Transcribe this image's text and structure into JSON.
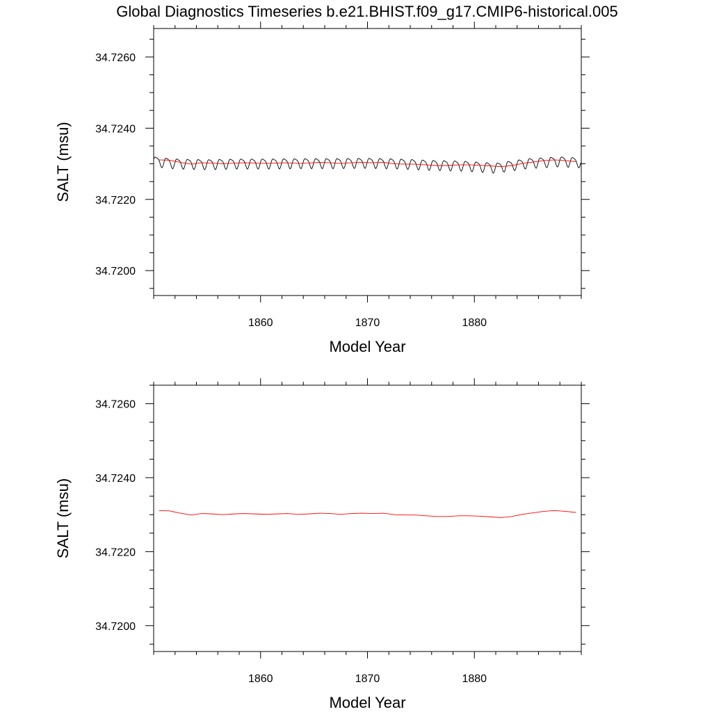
{
  "title": "Global Diagnostics Timeseries b.e21.BHIST.f09_g17.CMIP6-historical.005",
  "colors": {
    "raw": "#000000",
    "smooth": "#ff0000"
  },
  "chart_data": [
    {
      "type": "line",
      "xlabel": "Model Year",
      "ylabel": "SALT (msu)",
      "xlim": [
        1850,
        1890
      ],
      "ylim": [
        34.7193,
        34.7268
      ],
      "x_ticks": [
        1860,
        1870,
        1880
      ],
      "x_tick_labels": [
        "1860",
        "1870",
        "1880"
      ],
      "y_ticks": [
        34.72,
        34.722,
        34.724,
        34.726
      ],
      "y_tick_labels": [
        "34.7200",
        "34.7220",
        "34.7240",
        "34.7260"
      ],
      "series": [
        {
          "style": "monthly",
          "color": "#000000",
          "x_start": 1850.04,
          "x_step": 0.0833333,
          "base_x": [
            1850,
            1852,
            1855,
            1858,
            1861,
            1864,
            1867,
            1870,
            1873,
            1876,
            1879,
            1882,
            1885,
            1888,
            1890
          ],
          "base_y": [
            34.72308,
            34.72302,
            34.723,
            34.72302,
            34.72302,
            34.72303,
            34.72303,
            34.72304,
            34.72302,
            34.72298,
            34.72296,
            34.7229,
            34.72303,
            34.72308,
            34.72305
          ],
          "seasonal_amplitude": 0.00015
        },
        {
          "style": "annual",
          "color": "#ff0000",
          "x": [
            1850.5,
            1851.5,
            1852.5,
            1853.5,
            1854.5,
            1855.5,
            1856.5,
            1857.5,
            1858.5,
            1859.5,
            1860.5,
            1861.5,
            1862.5,
            1863.5,
            1864.5,
            1865.5,
            1866.5,
            1867.5,
            1868.5,
            1869.5,
            1870.5,
            1871.5,
            1872.5,
            1873.5,
            1874.5,
            1875.5,
            1876.5,
            1877.5,
            1878.5,
            1879.5,
            1880.5,
            1881.5,
            1882.5,
            1883.5,
            1884.5,
            1885.5,
            1886.5,
            1887.5,
            1888.5,
            1889.5
          ],
          "y": [
            34.72311,
            34.7231,
            34.72304,
            34.72299,
            34.72303,
            34.72302,
            34.723,
            34.72302,
            34.72303,
            34.72302,
            34.72301,
            34.72302,
            34.72303,
            34.72301,
            34.72302,
            34.72304,
            34.72303,
            34.72301,
            34.72303,
            34.72304,
            34.72303,
            34.72304,
            34.723,
            34.72299,
            34.72299,
            34.72297,
            34.72295,
            34.72295,
            34.72297,
            34.72297,
            34.72296,
            34.72294,
            34.72292,
            34.72295,
            34.72301,
            34.72305,
            34.72309,
            34.72311,
            34.72309,
            34.72306
          ]
        }
      ]
    },
    {
      "type": "line",
      "xlabel": "Model Year",
      "ylabel": "SALT (msu)",
      "xlim": [
        1850,
        1890
      ],
      "ylim": [
        34.7193,
        34.7265
      ],
      "x_ticks": [
        1860,
        1870,
        1880
      ],
      "x_tick_labels": [
        "1860",
        "1870",
        "1880"
      ],
      "y_ticks": [
        34.72,
        34.722,
        34.724,
        34.726
      ],
      "y_tick_labels": [
        "34.7200",
        "34.7220",
        "34.7240",
        "34.7260"
      ],
      "series": [
        {
          "style": "annual",
          "color": "#ff0000",
          "x": [
            1850.5,
            1851.5,
            1852.5,
            1853.5,
            1854.5,
            1855.5,
            1856.5,
            1857.5,
            1858.5,
            1859.5,
            1860.5,
            1861.5,
            1862.5,
            1863.5,
            1864.5,
            1865.5,
            1866.5,
            1867.5,
            1868.5,
            1869.5,
            1870.5,
            1871.5,
            1872.5,
            1873.5,
            1874.5,
            1875.5,
            1876.5,
            1877.5,
            1878.5,
            1879.5,
            1880.5,
            1881.5,
            1882.5,
            1883.5,
            1884.5,
            1885.5,
            1886.5,
            1887.5,
            1888.5,
            1889.5
          ],
          "y": [
            34.72311,
            34.7231,
            34.72304,
            34.72299,
            34.72303,
            34.72302,
            34.723,
            34.72302,
            34.72303,
            34.72302,
            34.72301,
            34.72302,
            34.72303,
            34.72301,
            34.72302,
            34.72304,
            34.72303,
            34.72301,
            34.72303,
            34.72304,
            34.72303,
            34.72304,
            34.723,
            34.72299,
            34.72299,
            34.72297,
            34.72295,
            34.72295,
            34.72297,
            34.72297,
            34.72296,
            34.72294,
            34.72292,
            34.72295,
            34.72301,
            34.72305,
            34.72309,
            34.72311,
            34.72309,
            34.72306
          ]
        }
      ]
    }
  ]
}
